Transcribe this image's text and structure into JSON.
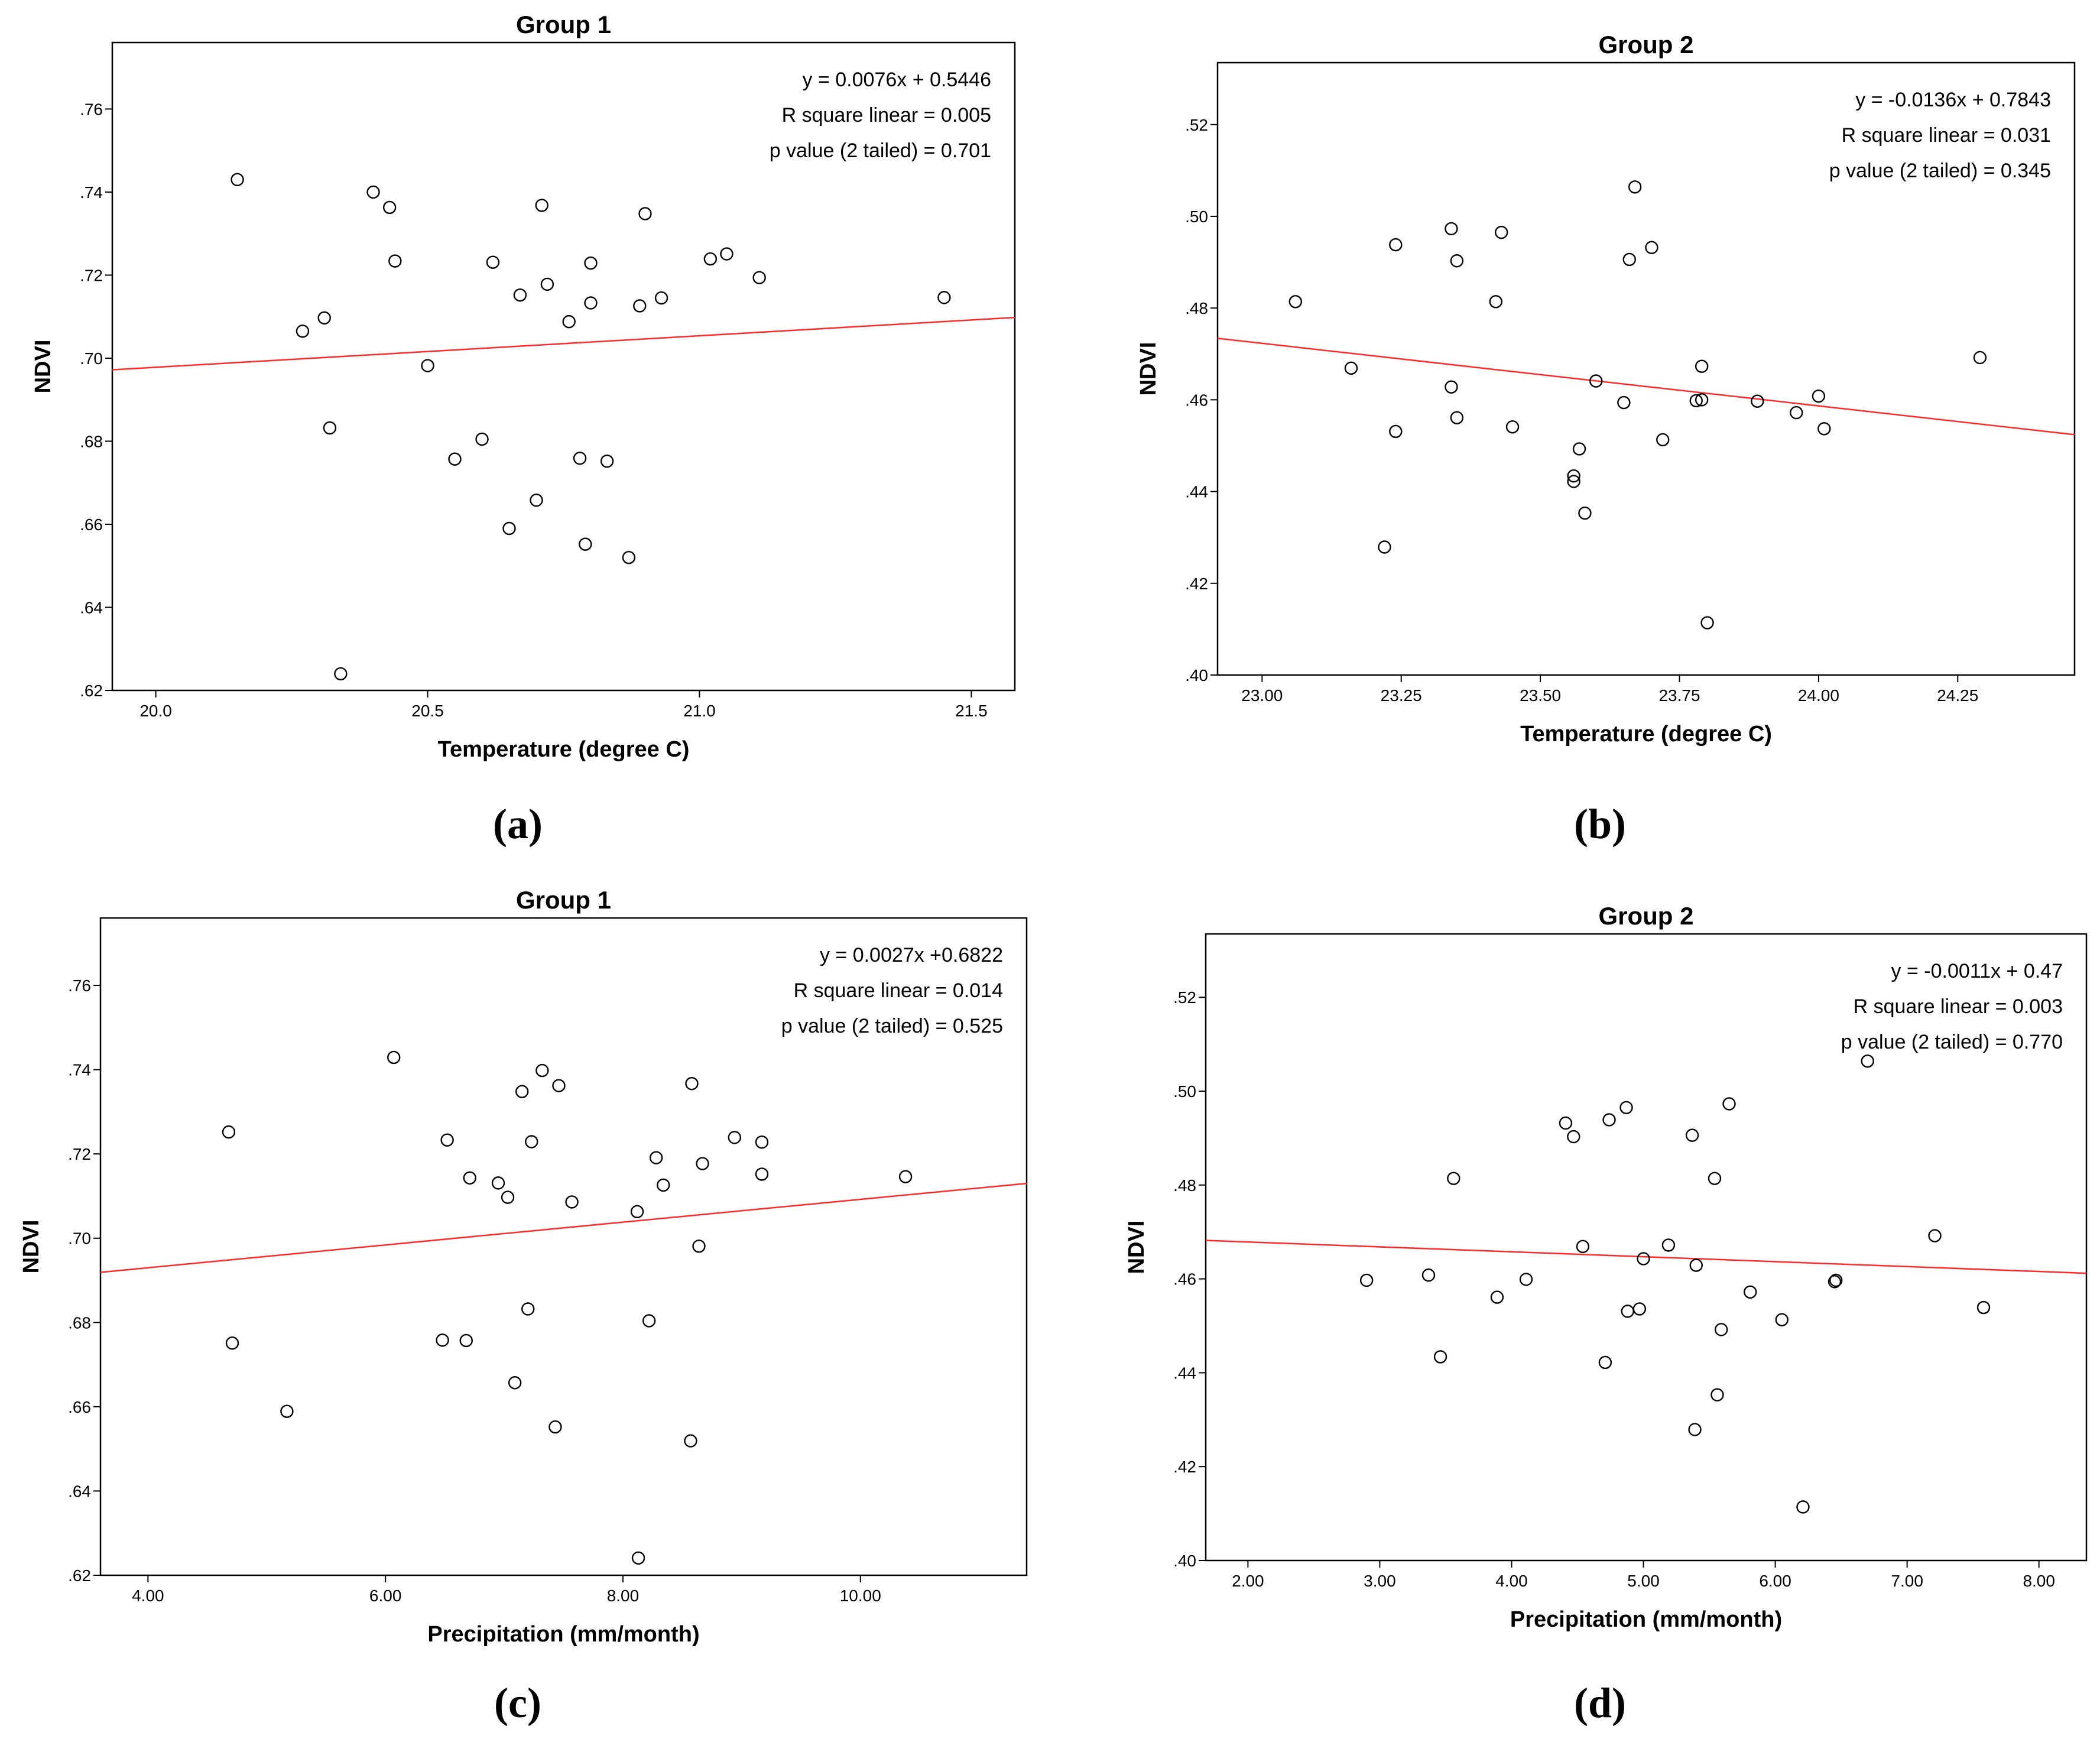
{
  "chart_data": [
    {
      "type": "scatter",
      "caption": "(a)",
      "title": "Group 1",
      "xlabel": "Temperature (degree C)",
      "ylabel": "NDVI",
      "xlim": [
        19.92,
        21.58
      ],
      "ylim": [
        0.62,
        0.776
      ],
      "xticks": [
        20.0,
        20.5,
        21.0,
        21.5
      ],
      "xtick_labels": [
        "20.0",
        "20.5",
        "21.0",
        "21.5"
      ],
      "yticks": [
        0.62,
        0.64,
        0.66,
        0.68,
        0.7,
        0.72,
        0.74,
        0.76
      ],
      "ytick_labels": [
        ".62",
        ".64",
        ".66",
        ".68",
        ".70",
        ".72",
        ".74",
        ".76"
      ],
      "stats": [
        "y = 0.0076x + 0.5446",
        "R square linear = 0.005",
        "p value (2 tailed) = 0.701"
      ],
      "fit_line": [
        {
          "x": 19.92,
          "y": 0.6972
        },
        {
          "x": 21.58,
          "y": 0.7098
        }
      ],
      "points": [
        {
          "x": 20.15,
          "y": 0.743
        },
        {
          "x": 20.27,
          "y": 0.7065
        },
        {
          "x": 20.31,
          "y": 0.7097
        },
        {
          "x": 20.32,
          "y": 0.6832
        },
        {
          "x": 20.34,
          "y": 0.624
        },
        {
          "x": 20.4,
          "y": 0.74
        },
        {
          "x": 20.43,
          "y": 0.7363
        },
        {
          "x": 20.44,
          "y": 0.7234
        },
        {
          "x": 20.5,
          "y": 0.6982
        },
        {
          "x": 20.55,
          "y": 0.6757
        },
        {
          "x": 20.6,
          "y": 0.6805
        },
        {
          "x": 20.62,
          "y": 0.7231
        },
        {
          "x": 20.65,
          "y": 0.659
        },
        {
          "x": 20.67,
          "y": 0.7152
        },
        {
          "x": 20.7,
          "y": 0.6658
        },
        {
          "x": 20.71,
          "y": 0.7368
        },
        {
          "x": 20.72,
          "y": 0.7178
        },
        {
          "x": 20.76,
          "y": 0.7088
        },
        {
          "x": 20.78,
          "y": 0.6759
        },
        {
          "x": 20.79,
          "y": 0.6552
        },
        {
          "x": 20.8,
          "y": 0.7229
        },
        {
          "x": 20.8,
          "y": 0.7133
        },
        {
          "x": 20.83,
          "y": 0.6752
        },
        {
          "x": 20.87,
          "y": 0.652
        },
        {
          "x": 20.89,
          "y": 0.7126
        },
        {
          "x": 20.9,
          "y": 0.7348
        },
        {
          "x": 20.93,
          "y": 0.7145
        },
        {
          "x": 21.02,
          "y": 0.7239
        },
        {
          "x": 21.05,
          "y": 0.7251
        },
        {
          "x": 21.11,
          "y": 0.7194
        },
        {
          "x": 21.45,
          "y": 0.7146
        }
      ]
    },
    {
      "type": "scatter",
      "caption": "(b)",
      "title": "Group 2",
      "xlabel": "Temperature (degree C)",
      "ylabel": "NDVI",
      "xlim": [
        22.92,
        24.46
      ],
      "ylim": [
        0.4,
        0.5335
      ],
      "xticks": [
        23.0,
        23.25,
        23.5,
        23.75,
        24.0,
        24.25
      ],
      "xtick_labels": [
        "23.00",
        "23.25",
        "23.50",
        "23.75",
        "24.00",
        "24.25"
      ],
      "yticks": [
        0.4,
        0.42,
        0.44,
        0.46,
        0.48,
        0.5,
        0.52
      ],
      "ytick_labels": [
        ".40",
        ".42",
        ".44",
        ".46",
        ".48",
        ".50",
        ".52"
      ],
      "stats": [
        "y = -0.0136x + 0.7843",
        "R square linear = 0.031",
        "p value (2 tailed) = 0.345"
      ],
      "fit_line": [
        {
          "x": 22.92,
          "y": 0.4734
        },
        {
          "x": 24.46,
          "y": 0.4524
        }
      ],
      "points": [
        {
          "x": 23.06,
          "y": 0.4814
        },
        {
          "x": 23.16,
          "y": 0.4669
        },
        {
          "x": 23.22,
          "y": 0.4279
        },
        {
          "x": 23.24,
          "y": 0.4938
        },
        {
          "x": 23.24,
          "y": 0.4531
        },
        {
          "x": 23.34,
          "y": 0.4973
        },
        {
          "x": 23.34,
          "y": 0.4628
        },
        {
          "x": 23.35,
          "y": 0.4903
        },
        {
          "x": 23.35,
          "y": 0.4561
        },
        {
          "x": 23.42,
          "y": 0.4814
        },
        {
          "x": 23.43,
          "y": 0.4965
        },
        {
          "x": 23.45,
          "y": 0.4541
        },
        {
          "x": 23.56,
          "y": 0.4434
        },
        {
          "x": 23.56,
          "y": 0.4422
        },
        {
          "x": 23.57,
          "y": 0.4493
        },
        {
          "x": 23.58,
          "y": 0.4353
        },
        {
          "x": 23.6,
          "y": 0.4641
        },
        {
          "x": 23.65,
          "y": 0.4594
        },
        {
          "x": 23.66,
          "y": 0.4906
        },
        {
          "x": 23.67,
          "y": 0.5064
        },
        {
          "x": 23.7,
          "y": 0.4932
        },
        {
          "x": 23.72,
          "y": 0.4513
        },
        {
          "x": 23.78,
          "y": 0.4598
        },
        {
          "x": 23.79,
          "y": 0.4673
        },
        {
          "x": 23.79,
          "y": 0.46
        },
        {
          "x": 23.8,
          "y": 0.4114
        },
        {
          "x": 23.89,
          "y": 0.4597
        },
        {
          "x": 23.96,
          "y": 0.4572
        },
        {
          "x": 24.0,
          "y": 0.4608
        },
        {
          "x": 24.01,
          "y": 0.4537
        },
        {
          "x": 24.29,
          "y": 0.4692
        }
      ]
    },
    {
      "type": "scatter",
      "caption": "(c)",
      "title": "Group 1",
      "xlabel": "Precipitation (mm/month)",
      "ylabel": "NDVI",
      "xlim": [
        3.6,
        11.4
      ],
      "ylim": [
        0.62,
        0.776
      ],
      "xticks": [
        4.0,
        6.0,
        8.0,
        10.0
      ],
      "xtick_labels": [
        "4.00",
        "6.00",
        "8.00",
        "10.00"
      ],
      "yticks": [
        0.62,
        0.64,
        0.66,
        0.68,
        0.7,
        0.72,
        0.74,
        0.76
      ],
      "ytick_labels": [
        ".62",
        ".64",
        ".66",
        ".68",
        ".70",
        ".72",
        ".74",
        ".76"
      ],
      "stats": [
        "y = 0.0027x +0.6822",
        "R square linear = 0.014",
        "p value (2 tailed) = 0.525"
      ],
      "fit_line": [
        {
          "x": 3.6,
          "y": 0.6919
        },
        {
          "x": 11.4,
          "y": 0.713
        }
      ],
      "points": [
        {
          "x": 4.68,
          "y": 0.7252
        },
        {
          "x": 4.71,
          "y": 0.6751
        },
        {
          "x": 5.17,
          "y": 0.6589
        },
        {
          "x": 6.07,
          "y": 0.7429
        },
        {
          "x": 6.48,
          "y": 0.6758
        },
        {
          "x": 6.52,
          "y": 0.7233
        },
        {
          "x": 6.68,
          "y": 0.6757
        },
        {
          "x": 6.71,
          "y": 0.7143
        },
        {
          "x": 6.95,
          "y": 0.7131
        },
        {
          "x": 7.03,
          "y": 0.7097
        },
        {
          "x": 7.09,
          "y": 0.6657
        },
        {
          "x": 7.15,
          "y": 0.7348
        },
        {
          "x": 7.2,
          "y": 0.6832
        },
        {
          "x": 7.23,
          "y": 0.7229
        },
        {
          "x": 7.32,
          "y": 0.7398
        },
        {
          "x": 7.43,
          "y": 0.6552
        },
        {
          "x": 7.46,
          "y": 0.7362
        },
        {
          "x": 7.57,
          "y": 0.7086
        },
        {
          "x": 8.12,
          "y": 0.7063
        },
        {
          "x": 8.13,
          "y": 0.6241
        },
        {
          "x": 8.22,
          "y": 0.6804
        },
        {
          "x": 8.28,
          "y": 0.7191
        },
        {
          "x": 8.34,
          "y": 0.7126
        },
        {
          "x": 8.57,
          "y": 0.6519
        },
        {
          "x": 8.58,
          "y": 0.7367
        },
        {
          "x": 8.64,
          "y": 0.6981
        },
        {
          "x": 8.67,
          "y": 0.7177
        },
        {
          "x": 8.94,
          "y": 0.7239
        },
        {
          "x": 9.17,
          "y": 0.7228
        },
        {
          "x": 9.17,
          "y": 0.7152
        },
        {
          "x": 10.38,
          "y": 0.7146
        }
      ]
    },
    {
      "type": "scatter",
      "caption": "(d)",
      "title": "Group 2",
      "xlabel": "Precipitation (mm/month)",
      "ylabel": "NDVI",
      "xlim": [
        1.68,
        8.36
      ],
      "ylim": [
        0.4,
        0.5335
      ],
      "xticks": [
        2.0,
        3.0,
        4.0,
        5.0,
        6.0,
        7.0,
        8.0
      ],
      "xtick_labels": [
        "2.00",
        "3.00",
        "4.00",
        "5.00",
        "6.00",
        "7.00",
        "8.00"
      ],
      "yticks": [
        0.4,
        0.42,
        0.44,
        0.46,
        0.48,
        0.5,
        0.52
      ],
      "ytick_labels": [
        ".40",
        ".42",
        ".44",
        ".46",
        ".48",
        ".50",
        ".52"
      ],
      "stats": [
        "y = -0.0011x + 0.47",
        "R square linear = 0.003",
        "p value (2 tailed) = 0.770"
      ],
      "fit_line": [
        {
          "x": 1.68,
          "y": 0.4682
        },
        {
          "x": 8.36,
          "y": 0.4612
        }
      ],
      "points": [
        {
          "x": 2.9,
          "y": 0.4597
        },
        {
          "x": 3.37,
          "y": 0.4608
        },
        {
          "x": 3.46,
          "y": 0.4434
        },
        {
          "x": 3.56,
          "y": 0.4814
        },
        {
          "x": 3.89,
          "y": 0.4561
        },
        {
          "x": 4.11,
          "y": 0.4599
        },
        {
          "x": 4.41,
          "y": 0.4932
        },
        {
          "x": 4.47,
          "y": 0.4903
        },
        {
          "x": 4.54,
          "y": 0.4669
        },
        {
          "x": 4.71,
          "y": 0.4422
        },
        {
          "x": 4.74,
          "y": 0.4939
        },
        {
          "x": 4.87,
          "y": 0.4965
        },
        {
          "x": 4.88,
          "y": 0.4531
        },
        {
          "x": 4.97,
          "y": 0.4536
        },
        {
          "x": 5.0,
          "y": 0.4643
        },
        {
          "x": 5.19,
          "y": 0.4672
        },
        {
          "x": 5.37,
          "y": 0.4906
        },
        {
          "x": 5.39,
          "y": 0.4279
        },
        {
          "x": 5.4,
          "y": 0.4629
        },
        {
          "x": 5.54,
          "y": 0.4814
        },
        {
          "x": 5.56,
          "y": 0.4353
        },
        {
          "x": 5.59,
          "y": 0.4492
        },
        {
          "x": 5.65,
          "y": 0.4973
        },
        {
          "x": 5.81,
          "y": 0.4572
        },
        {
          "x": 6.05,
          "y": 0.4513
        },
        {
          "x": 6.21,
          "y": 0.4114
        },
        {
          "x": 6.45,
          "y": 0.4594
        },
        {
          "x": 6.46,
          "y": 0.4597
        },
        {
          "x": 6.7,
          "y": 0.5064
        },
        {
          "x": 7.21,
          "y": 0.4692
        },
        {
          "x": 7.58,
          "y": 0.4539
        }
      ]
    }
  ]
}
